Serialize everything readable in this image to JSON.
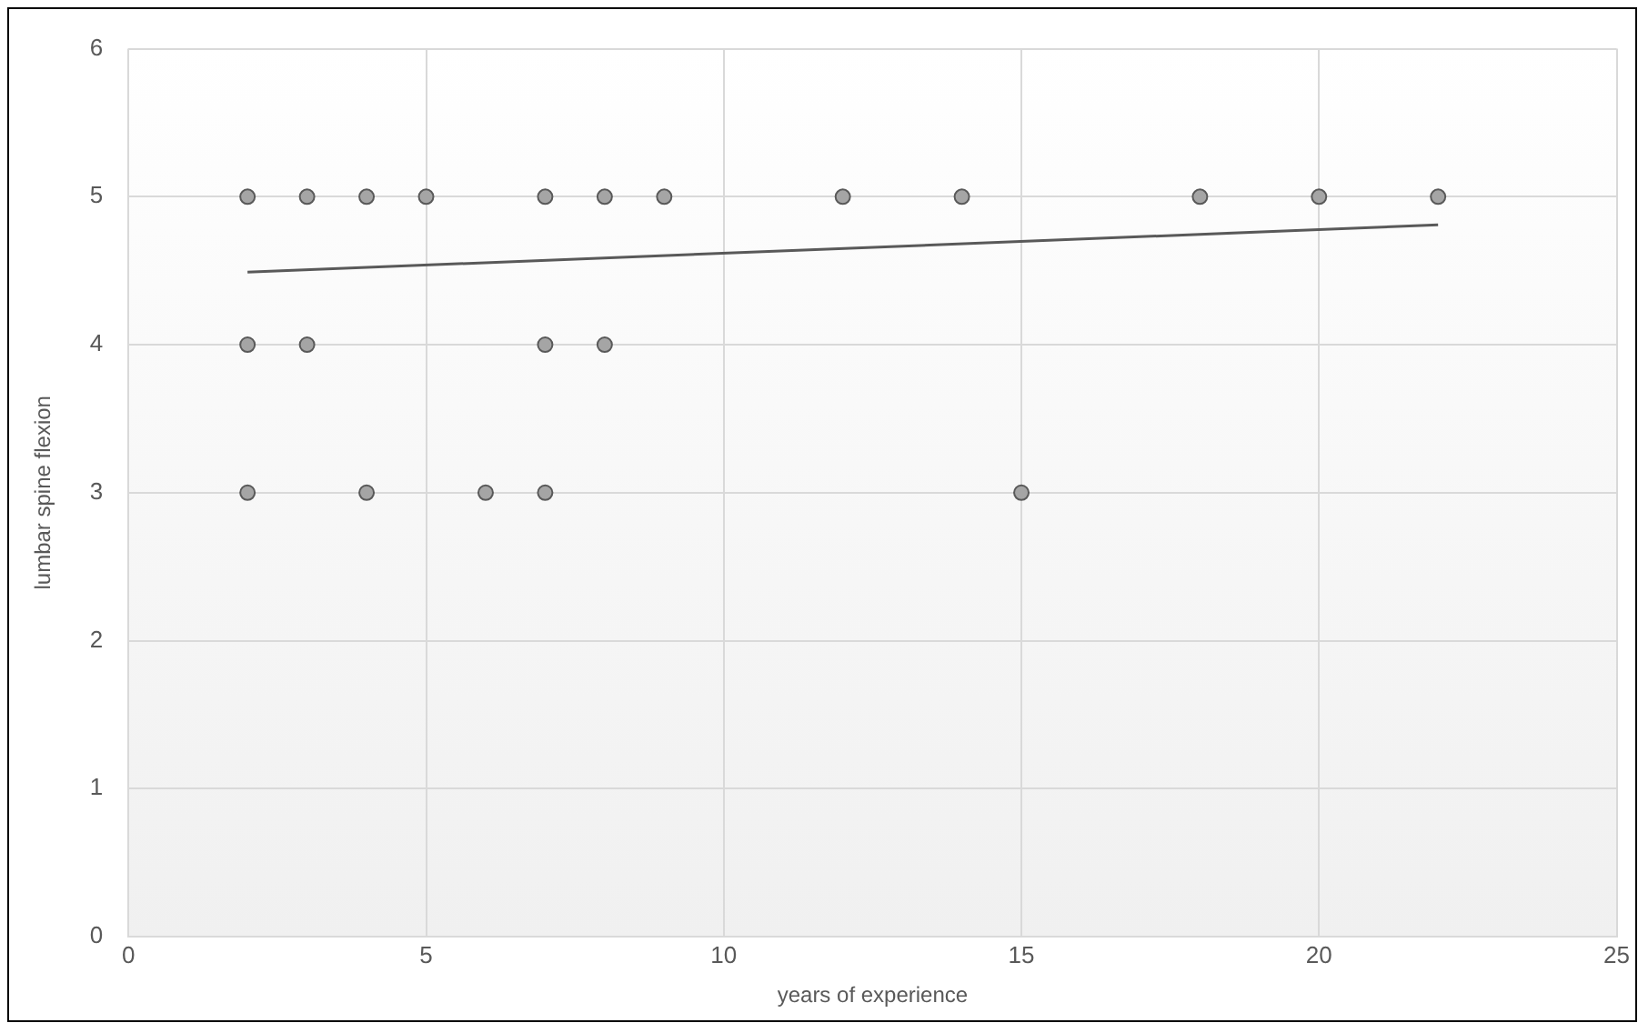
{
  "chart_data": {
    "type": "scatter",
    "xlabel": "years of experience",
    "ylabel": "lumbar spine flexion",
    "xlim": [
      0,
      25
    ],
    "xticks": [
      0,
      5,
      10,
      15,
      20,
      25
    ],
    "ylim": [
      0,
      6
    ],
    "yticks": [
      0,
      1,
      2,
      3,
      4,
      5,
      6
    ],
    "grid": true,
    "legend": false,
    "marker": "circle",
    "series": [
      {
        "type": "scatter",
        "color": "#a5a5a5",
        "x": [
          2,
          3,
          4,
          5,
          7,
          8,
          9,
          12,
          14,
          18,
          20,
          22,
          2,
          3,
          7,
          8,
          2,
          4,
          6,
          7,
          15
        ],
        "values": [
          5,
          5,
          5,
          5,
          5,
          5,
          5,
          5,
          5,
          5,
          5,
          5,
          4,
          4,
          4,
          4,
          3,
          3,
          3,
          3,
          3
        ]
      },
      {
        "type": "line",
        "color": "#595959",
        "x": [
          2,
          22
        ],
        "values": [
          4.49,
          4.81
        ],
        "marker": "none",
        "line_style": "solid"
      }
    ]
  }
}
